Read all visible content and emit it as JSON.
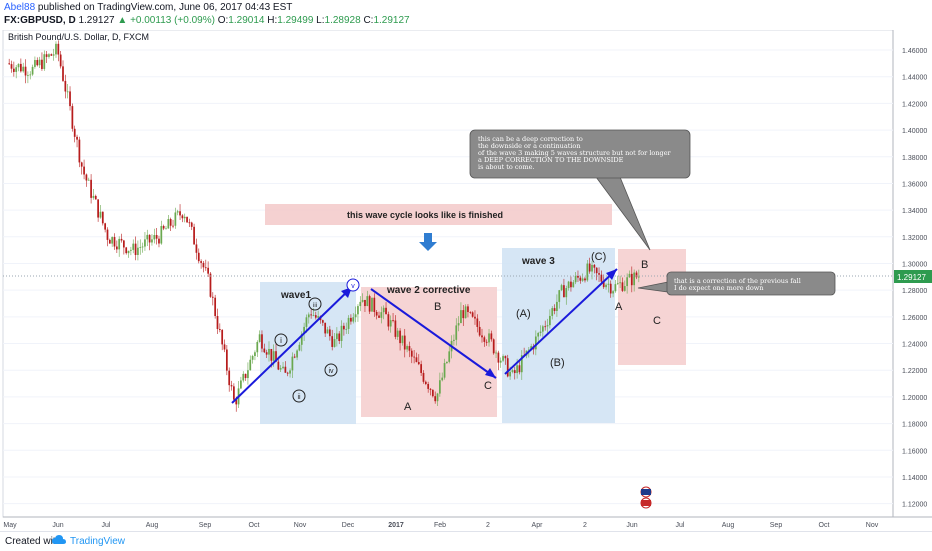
{
  "header": {
    "author": "Abel88",
    "published": "published on TradingView.com, June 06, 2017 04:43 EST",
    "symbol": "FX:GBPUSD, D",
    "last": "1.29127",
    "change": "▲ +0.00113 (+0.09%)",
    "o_label": "O:",
    "o_value": "1.29014",
    "h_label": "H:",
    "h_value": "1.29499",
    "l_label": "L:",
    "l_value": "1.28928",
    "c_label": "C:",
    "c_value": "1.29127"
  },
  "footer": {
    "created_with": "Created with",
    "brand": "TradingView"
  },
  "chart_data": {
    "type": "candlestick",
    "instrument": "British Pound/U.S. Dollar, D, FXCM",
    "ylim": [
      1.11,
      1.475
    ],
    "y_ticks": [
      "1.46000",
      "1.44000",
      "1.42000",
      "1.40000",
      "1.38000",
      "1.36000",
      "1.34000",
      "1.32000",
      "1.30000",
      "1.28000",
      "1.26000",
      "1.24000",
      "1.22000",
      "1.20000",
      "1.18000",
      "1.16000",
      "1.14000",
      "1.12000"
    ],
    "x_ticks": [
      "May",
      "Jun",
      "Jul",
      "Aug",
      "Sep",
      "Oct",
      "Nov",
      "Dec",
      "2017",
      "Feb",
      "2",
      "Apr",
      "2",
      "Jun",
      "Jul",
      "Aug",
      "Sep",
      "Oct",
      "Nov"
    ],
    "last_price": "1.29127",
    "price_path": [
      [
        "May",
        1.45
      ],
      [
        "Jun",
        1.445
      ],
      [
        "Jun-23",
        1.46
      ],
      [
        "Jun-24",
        1.37
      ],
      [
        "Jul",
        1.32
      ],
      [
        "Aug",
        1.31
      ],
      [
        "Sep",
        1.32
      ],
      [
        "Sep-mid",
        1.34
      ],
      [
        "Oct",
        1.285
      ],
      [
        "Oct-07",
        1.195
      ],
      [
        "Oct-mid",
        1.245
      ],
      [
        "Oct-25",
        1.215
      ],
      [
        "Nov-10",
        1.265
      ],
      [
        "Nov-20",
        1.24
      ],
      [
        "Dec-05",
        1.275
      ],
      [
        "Dec-mid",
        1.26
      ],
      [
        "2017",
        1.23
      ],
      [
        "Jan-16",
        1.2
      ],
      [
        "Feb",
        1.265
      ],
      [
        "Feb-mid",
        1.245
      ],
      [
        "Mar-14",
        1.215
      ],
      [
        "Apr",
        1.245
      ],
      [
        "Apr-mid",
        1.28
      ],
      [
        "May",
        1.295
      ],
      [
        "Jun",
        1.282
      ],
      [
        "Jun-06",
        1.291
      ]
    ],
    "wave_labels": {
      "wave1": "wave1",
      "wave2": "wave 2 corrective",
      "wave3": "wave 3",
      "i": "i",
      "ii": "ii",
      "iii": "iii",
      "iv": "iv",
      "v": "v",
      "A1": "A",
      "B1": "B",
      "C1": "C",
      "pA": "(A)",
      "pB": "(B)",
      "pC": "(C)",
      "A2": "A",
      "B2": "B",
      "C2": "C"
    },
    "banner": "this wave cycle looks like is finished",
    "callout1": [
      "this can be a deep correction to",
      "the downside or a continuation",
      "of the wave 3 making 5 waves structure but not for longer",
      "a DEEP CORRECTION TO THE DOWNSIDE",
      "is about to come."
    ],
    "callout2": [
      "that is a correction of the previous fall",
      "I do expect one more down"
    ],
    "colors": {
      "up": "#6aa84f",
      "down": "#b71c1c",
      "blue_box": "#cfe2f3",
      "red_box": "#f4cccc",
      "arrow": "#1a1adb",
      "callout": "#8a8a8a"
    }
  }
}
